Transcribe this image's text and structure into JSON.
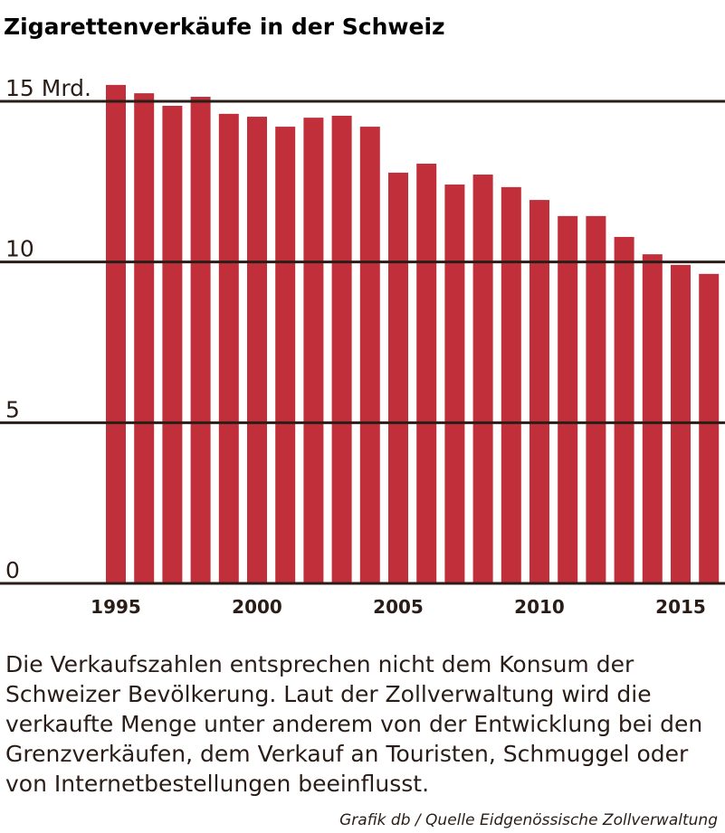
{
  "chart_data": {
    "type": "bar",
    "title": "Zigarettenverkäufe in der Schweiz",
    "categories": [
      "1995",
      null,
      null,
      null,
      null,
      "2000",
      null,
      null,
      null,
      null,
      "2005",
      null,
      null,
      null,
      null,
      "2010",
      null,
      null,
      null,
      null,
      "2015",
      null
    ],
    "values": [
      15.51,
      15.25,
      14.86,
      15.14,
      14.61,
      14.52,
      14.21,
      14.49,
      14.55,
      14.21,
      12.78,
      13.06,
      12.41,
      12.72,
      12.33,
      11.93,
      11.43,
      11.43,
      10.78,
      10.24,
      9.91,
      9.63
    ],
    "color": "#c1303a",
    "ylim": [
      0,
      16
    ],
    "yticks": [
      0,
      5,
      10,
      {
        "value": 15,
        "label": "15 Mrd."
      }
    ],
    "grid": true,
    "note": "Die Verkaufszahlen entsprechen nicht dem Konsum der Schweizer Bevölkerung. Laut der Zollverwaltung wird die verkaufte Menge unter anderem von der Entwicklung bei den Grenzverkäufen, dem Verkauf an Touristen, Schmuggel oder von Internetbestellungen beeinflusst.",
    "source": "Grafik db / Quelle Eidgenössische Zollverwaltung"
  }
}
